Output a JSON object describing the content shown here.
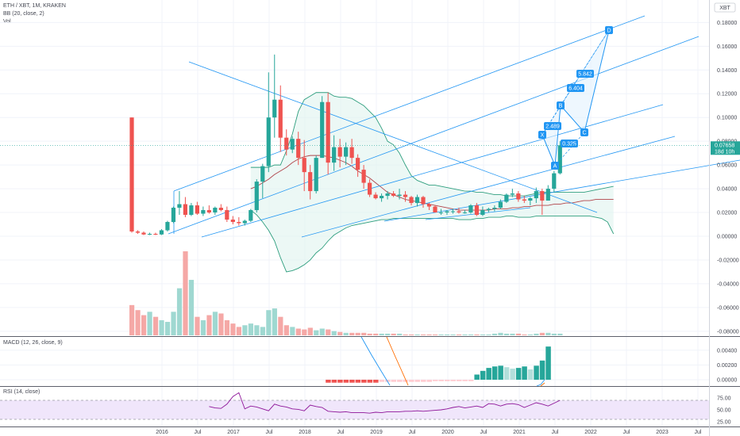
{
  "header": {
    "symbol": "ETH / XBT, 1M, KRAKEN",
    "bb": "BB (20, close, 2)",
    "vol": "Vol"
  },
  "currency_badge": "XBT",
  "price_tag": {
    "price": "0.07658",
    "countdown": "18d 10h"
  },
  "macd_label": "MACD (12, 26, close, 9)",
  "rsi_label": "RSI (14, close)",
  "colors": {
    "up": "#26a69a",
    "down": "#ef5350",
    "bb_band": "#2e9e7e",
    "bb_basis": "#b0444a",
    "trend": "#2196f3",
    "rsi_line": "#8e1599",
    "rsi_fill": "#f0e6fb"
  },
  "chart_data": [
    {
      "type": "candlestick",
      "title": "ETH / XBT, 1M, KRAKEN",
      "x_ticks": [
        "2016",
        "Jul",
        "2017",
        "Jul",
        "2018",
        "Jul",
        "2019",
        "Jul",
        "2020",
        "Jul",
        "2021",
        "Jul",
        "2022",
        "Jul",
        "2023",
        "Jul"
      ],
      "y_ticks": [
        "0.18000",
        "0.16000",
        "0.14000",
        "0.12000",
        "0.10000",
        "0.08000",
        "0.06000",
        "0.04000",
        "0.02000",
        "0.00000",
        "-0.02000",
        "-0.04000",
        "-0.06000",
        "-0.08000"
      ],
      "ylim": [
        -0.086,
        0.194
      ],
      "last_price": 0.07658,
      "ohlc": [
        [
          0.1,
          0.1,
          0.003,
          0.004
        ],
        [
          0.004,
          0.005,
          0.002,
          0.003
        ],
        [
          0.003,
          0.004,
          0.001,
          0.0015
        ],
        [
          0.0015,
          0.003,
          0.001,
          0.002
        ],
        [
          0.002,
          0.003,
          0.001,
          0.0015
        ],
        [
          0.0015,
          0.006,
          0.001,
          0.005
        ],
        [
          0.005,
          0.013,
          0.004,
          0.012
        ],
        [
          0.012,
          0.025,
          0.011,
          0.024
        ],
        [
          0.024,
          0.038,
          0.018,
          0.027
        ],
        [
          0.027,
          0.033,
          0.016,
          0.018
        ],
        [
          0.018,
          0.028,
          0.017,
          0.026
        ],
        [
          0.026,
          0.029,
          0.018,
          0.019
        ],
        [
          0.019,
          0.025,
          0.017,
          0.022
        ],
        [
          0.022,
          0.026,
          0.019,
          0.02
        ],
        [
          0.02,
          0.025,
          0.018,
          0.024
        ],
        [
          0.024,
          0.027,
          0.021,
          0.022
        ],
        [
          0.022,
          0.025,
          0.012,
          0.014
        ],
        [
          0.014,
          0.017,
          0.01,
          0.012
        ],
        [
          0.012,
          0.016,
          0.009,
          0.011
        ],
        [
          0.011,
          0.014,
          0.009,
          0.013
        ],
        [
          0.013,
          0.023,
          0.012,
          0.022
        ],
        [
          0.022,
          0.048,
          0.02,
          0.046
        ],
        [
          0.046,
          0.061,
          0.032,
          0.059
        ],
        [
          0.059,
          0.138,
          0.054,
          0.1
        ],
        [
          0.1,
          0.153,
          0.083,
          0.115
        ],
        [
          0.115,
          0.127,
          0.071,
          0.083
        ],
        [
          0.083,
          0.09,
          0.068,
          0.073
        ],
        [
          0.073,
          0.084,
          0.07,
          0.082
        ],
        [
          0.082,
          0.088,
          0.06,
          0.066
        ],
        [
          0.066,
          0.081,
          0.038,
          0.054
        ],
        [
          0.054,
          0.06,
          0.031,
          0.038
        ],
        [
          0.038,
          0.068,
          0.036,
          0.066
        ],
        [
          0.066,
          0.118,
          0.066,
          0.113
        ],
        [
          0.113,
          0.121,
          0.052,
          0.062
        ],
        [
          0.062,
          0.085,
          0.055,
          0.075
        ],
        [
          0.075,
          0.082,
          0.058,
          0.067
        ],
        [
          0.067,
          0.079,
          0.06,
          0.075
        ],
        [
          0.075,
          0.082,
          0.061,
          0.066
        ],
        [
          0.066,
          0.069,
          0.05,
          0.056
        ],
        [
          0.056,
          0.06,
          0.04,
          0.045
        ],
        [
          0.045,
          0.048,
          0.033,
          0.035
        ],
        [
          0.035,
          0.037,
          0.031,
          0.032
        ],
        [
          0.032,
          0.036,
          0.029,
          0.034
        ],
        [
          0.034,
          0.038,
          0.031,
          0.036
        ],
        [
          0.036,
          0.038,
          0.033,
          0.034
        ],
        [
          0.034,
          0.04,
          0.031,
          0.035
        ],
        [
          0.035,
          0.038,
          0.029,
          0.033
        ],
        [
          0.033,
          0.034,
          0.026,
          0.028
        ],
        [
          0.028,
          0.035,
          0.025,
          0.033
        ],
        [
          0.033,
          0.034,
          0.024,
          0.027
        ],
        [
          0.027,
          0.028,
          0.022,
          0.025
        ],
        [
          0.025,
          0.026,
          0.02,
          0.02
        ],
        [
          0.02,
          0.023,
          0.018,
          0.02
        ],
        [
          0.02,
          0.022,
          0.018,
          0.021
        ],
        [
          0.021,
          0.023,
          0.019,
          0.021
        ],
        [
          0.021,
          0.024,
          0.019,
          0.02
        ],
        [
          0.02,
          0.022,
          0.019,
          0.02
        ],
        [
          0.02,
          0.027,
          0.019,
          0.026
        ],
        [
          0.026,
          0.028,
          0.017,
          0.018
        ],
        [
          0.018,
          0.025,
          0.017,
          0.022
        ],
        [
          0.022,
          0.024,
          0.02,
          0.023
        ],
        [
          0.023,
          0.026,
          0.021,
          0.024
        ],
        [
          0.024,
          0.031,
          0.023,
          0.029
        ],
        [
          0.029,
          0.036,
          0.028,
          0.035
        ],
        [
          0.035,
          0.04,
          0.033,
          0.036
        ],
        [
          0.036,
          0.038,
          0.029,
          0.031
        ],
        [
          0.031,
          0.034,
          0.028,
          0.03
        ],
        [
          0.03,
          0.033,
          0.026,
          0.032
        ],
        [
          0.032,
          0.041,
          0.028,
          0.038
        ],
        [
          0.038,
          0.04,
          0.018,
          0.03
        ],
        [
          0.03,
          0.043,
          0.03,
          0.04
        ],
        [
          0.04,
          0.055,
          0.037,
          0.053
        ],
        [
          0.053,
          0.08,
          0.052,
          0.07658
        ]
      ],
      "bollinger": {
        "upper": [
          0.058,
          0.058,
          0.058,
          0.058,
          0.06,
          0.06,
          0.072,
          0.086,
          0.105,
          0.115,
          0.118,
          0.121,
          0.121,
          0.121,
          0.118,
          0.117,
          0.117,
          0.116,
          0.113,
          0.11,
          0.105,
          0.1,
          0.091,
          0.08,
          0.077,
          0.07,
          0.06,
          0.051,
          0.047,
          0.045,
          0.043,
          0.043,
          0.042,
          0.041,
          0.04,
          0.039,
          0.038,
          0.038,
          0.037,
          0.037,
          0.036,
          0.035,
          0.035,
          0.034,
          0.034,
          0.034,
          0.034,
          0.035,
          0.036,
          0.037,
          0.037,
          0.037,
          0.037,
          0.037,
          0.037,
          0.037,
          0.037,
          0.038,
          0.039,
          0.04,
          0.041,
          0.042
        ],
        "basis": [
          0.04,
          0.042,
          0.045,
          0.048,
          0.052,
          0.055,
          0.058,
          0.062,
          0.065,
          0.067,
          0.068,
          0.068,
          0.068,
          0.067,
          0.066,
          0.064,
          0.062,
          0.059,
          0.055,
          0.052,
          0.049,
          0.045,
          0.041,
          0.037,
          0.035,
          0.033,
          0.031,
          0.03,
          0.029,
          0.028,
          0.027,
          0.026,
          0.025,
          0.024,
          0.023,
          0.022,
          0.022,
          0.022,
          0.022,
          0.022,
          0.022,
          0.023,
          0.023,
          0.023,
          0.024,
          0.024,
          0.025,
          0.025,
          0.026,
          0.026,
          0.026,
          0.027,
          0.027,
          0.028,
          0.028,
          0.029,
          0.03,
          0.03,
          0.031,
          0.031,
          0.031,
          0.031
        ],
        "lower": [
          0.022,
          0.018,
          0.012,
          0.005,
          -0.004,
          -0.018,
          -0.03,
          -0.029,
          -0.027,
          -0.024,
          -0.02,
          -0.014,
          -0.01,
          -0.004,
          0.001,
          0.004,
          0.007,
          0.009,
          0.01,
          0.011,
          0.012,
          0.013,
          0.014,
          0.014,
          0.015,
          0.015,
          0.015,
          0.015,
          0.015,
          0.015,
          0.015,
          0.015,
          0.015,
          0.015,
          0.015,
          0.014,
          0.014,
          0.014,
          0.015,
          0.015,
          0.016,
          0.016,
          0.016,
          0.017,
          0.017,
          0.016,
          0.016,
          0.016,
          0.017,
          0.017,
          0.017,
          0.017,
          0.017,
          0.017,
          0.017,
          0.017,
          0.017,
          0.017,
          0.016,
          0.015,
          0.012,
          0.002
        ]
      },
      "pattern_points": [
        {
          "label": "X",
          "x": 0.052,
          "y": 0.063
        },
        {
          "label": "A",
          "x": 0.057,
          "y": 0.058
        },
        {
          "label": "B",
          "x": 0.059,
          "y": 0.084
        },
        {
          "label": "C",
          "x": 0.061,
          "y": 0.059
        },
        {
          "label": "D",
          "x": 0.063,
          "y": 0.172
        }
      ],
      "ratios": [
        "0.325",
        "2.489",
        "6.404",
        "5.842"
      ]
    },
    {
      "type": "bar",
      "title": "Vol",
      "values": [
        36,
        30,
        24,
        28,
        22,
        18,
        16,
        28,
        56,
        100,
        66,
        22,
        18,
        24,
        28,
        26,
        18,
        14,
        10,
        12,
        14,
        12,
        10,
        30,
        32,
        22,
        12,
        10,
        8,
        7,
        9,
        6,
        8,
        7,
        5,
        4,
        3,
        3,
        3,
        3,
        2,
        2,
        2,
        2,
        2,
        2,
        1,
        1,
        1,
        1,
        1,
        1,
        1,
        1,
        1,
        1,
        1,
        1,
        1,
        1,
        1,
        2,
        3,
        2,
        2,
        2,
        1,
        1,
        2,
        3,
        3,
        2,
        2
      ]
    },
    {
      "type": "bar",
      "title": "MACD (12, 26, close, 9)",
      "y_ticks": [
        "0.00400",
        "0.00200",
        "0.00000"
      ],
      "ylim": [
        -0.0004,
        0.0053
      ],
      "histogram": [
        -0.0004,
        -0.0004,
        -0.0004,
        -0.0004,
        -0.0004,
        -0.0004,
        -0.0004,
        -0.0004,
        -0.0004,
        -0.0003,
        -0.0003,
        -0.0003,
        -0.0003,
        -0.0003,
        -0.0003,
        -0.0003,
        -0.0003,
        -0.0003,
        -0.0002,
        -0.0002,
        -0.0002,
        -0.0002,
        -0.0002,
        -0.0002,
        -0.0002,
        0.0007,
        0.0012,
        0.0016,
        0.0018,
        0.0019,
        0.0017,
        0.0015,
        0.0016,
        0.0018,
        0.0014,
        0.0019,
        0.0026,
        0.0045
      ]
    },
    {
      "type": "line",
      "title": "RSI (14, close)",
      "y_ticks": [
        "75.00",
        "50.00",
        "25.00"
      ],
      "ylim": [
        25,
        88
      ],
      "values": [
        57,
        54,
        53,
        62,
        78,
        86,
        52,
        58,
        56,
        52,
        48,
        62,
        58,
        56,
        52,
        51,
        48,
        60,
        57,
        55,
        47,
        46,
        45,
        46,
        44,
        44,
        44,
        43,
        45,
        44,
        46,
        46,
        46,
        47,
        47,
        48,
        47,
        48,
        49,
        50,
        52,
        55,
        57,
        54,
        56,
        58,
        55,
        63,
        62,
        58,
        62,
        63,
        61,
        55,
        60,
        65,
        62,
        58,
        64,
        70
      ]
    }
  ]
}
